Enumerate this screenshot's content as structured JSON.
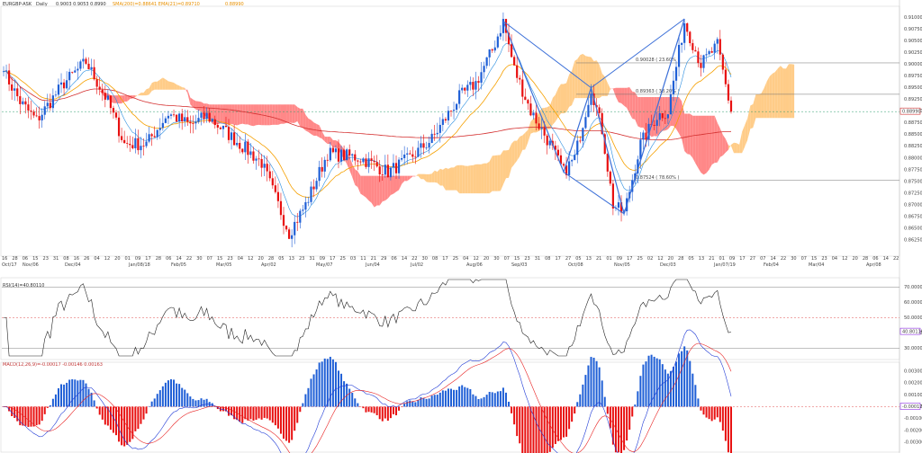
{
  "chart_data": [
    {
      "type": "candlestick",
      "instrument": "EURGBP",
      "header": {
        "symbol_text": "EURGBP-ASK",
        "timeframe_text": "Daily",
        "ohlc_text": "0.9003  0.9053  0.8990",
        "indicator_text": "SMA(200)=0.88641  EMA(21)=0.89710",
        "extra_text": "0.88990"
      },
      "ylim": [
        0.86,
        0.912
      ],
      "price_ticks": [
        0.91,
        0.9075,
        0.905,
        0.9025,
        0.9,
        0.8975,
        0.895,
        0.8925,
        0.89,
        0.8875,
        0.885,
        0.8825,
        0.88,
        0.8775,
        0.875,
        0.8725,
        0.87,
        0.8675,
        0.865,
        0.8625
      ],
      "price_tick_labels": [
        "0.91000",
        "0.90750",
        "0.90500",
        "0.90250",
        "0.90000",
        "0.89750",
        "0.89500",
        "0.89250",
        "0.89000",
        "0.88750",
        "0.88500",
        "0.88250",
        "0.88000",
        "0.87750",
        "0.87500",
        "0.87250",
        "0.87000",
        "0.86750",
        "0.86500",
        "0.86250"
      ],
      "current_price_label": "0.88990",
      "x_day_ticks": [
        "16",
        "28",
        "06",
        "15",
        "23",
        "31",
        "08",
        "16",
        "26",
        "04",
        "12",
        "20",
        "01",
        "09",
        "17",
        "28",
        "06",
        "14",
        "22",
        "30",
        "07",
        "15",
        "23",
        "04",
        "12",
        "20",
        "28",
        "05",
        "13",
        "23",
        "31",
        "09",
        "17",
        "25",
        "03",
        "11",
        "21",
        "29",
        "06",
        "14",
        "22",
        "30",
        "08",
        "17",
        "25",
        "04",
        "12",
        "20",
        "30",
        "07",
        "15",
        "23",
        "31",
        "08",
        "17",
        "27",
        "05",
        "13",
        "21",
        "01",
        "09",
        "17",
        "25",
        "02",
        "12",
        "20",
        "28",
        "05",
        "13",
        "21",
        "01",
        "09",
        "17",
        "27",
        "07",
        "14",
        "22",
        "30",
        "07",
        "15",
        "23",
        "04",
        "12",
        "20",
        "28",
        "06",
        "14",
        "22"
      ],
      "x_month_ticks": [
        "Oct/17",
        "Nov/06",
        "Dec/04",
        "Jan/08/18",
        "Feb/05",
        "Mar/05",
        "Apr/02",
        "May/07",
        "Jun/04",
        "Jul/02",
        "Aug/06",
        "Sep/03",
        "Oct/08",
        "Nov/05",
        "Dec/03",
        "Jan/07/19",
        "Feb/04",
        "Mar/04",
        "Apr/08"
      ],
      "candles_ohlc_approx": {
        "count": 266,
        "first_close": 0.8985,
        "last_close": 0.8899,
        "min_low": 0.8622,
        "max_high": 0.9095
      },
      "series": [
        {
          "name": "SMA(200)",
          "color": "#d43030"
        },
        {
          "name": "EMA(21)",
          "color": "#f5a000"
        },
        {
          "name": "Tenkan/Kijun",
          "color": "#2b8ee0"
        },
        {
          "name": "Ichimoku cloud",
          "color_up": "#ffcc88",
          "color_down": "#ff8888"
        }
      ],
      "fib_levels": [
        {
          "label": "0.90028 ( 23.60% )",
          "price": 0.9003
        },
        {
          "label": "0.89363 ( 38.20% )",
          "price": 0.8936
        },
        {
          "label": "0.87524 ( 78.60% )",
          "price": 0.8752
        }
      ],
      "harmonic_pattern_points": [
        {
          "date": "Aug/28",
          "price": 0.9092
        },
        {
          "date": "Oct/08",
          "price": 0.877
        },
        {
          "date": "Oct/30",
          "price": 0.895
        },
        {
          "date": "Nov/12",
          "price": 0.8681
        },
        {
          "date": "Jan/02",
          "price": 0.9097
        }
      ]
    },
    {
      "type": "line",
      "name": "RSI(14)",
      "header_text": "RSI(14)=40.80110",
      "ylim": [
        25,
        75
      ],
      "ticks": [
        70,
        60,
        50,
        40,
        30
      ],
      "tick_labels": [
        "70.00000",
        "60.00000",
        "50.00000",
        "40.00000",
        "30.00000"
      ],
      "reference_lines": [
        70,
        50,
        30
      ],
      "current_value_label": "40.80110"
    },
    {
      "type": "bar+line",
      "name": "MACD(12,26,9)",
      "header_text": "MACD(12,26,9)=-0.00017  -0.00146  0.00163",
      "ylim": [
        -0.0036,
        0.0036
      ],
      "ticks": [
        0.003,
        0.002,
        0.001,
        0,
        -0.001,
        -0.002,
        -0.003
      ],
      "tick_labels": [
        "0.00300",
        "0.00200",
        "0.00100",
        "0.00000",
        "-0.00100",
        "-0.00200",
        "-0.00300"
      ],
      "current_value_label": "-0.00017",
      "colors": {
        "hist_up": "#1f5fd6",
        "hist_down": "#e81010",
        "macd": "#1f3ad6",
        "signal": "#e82020"
      }
    }
  ]
}
